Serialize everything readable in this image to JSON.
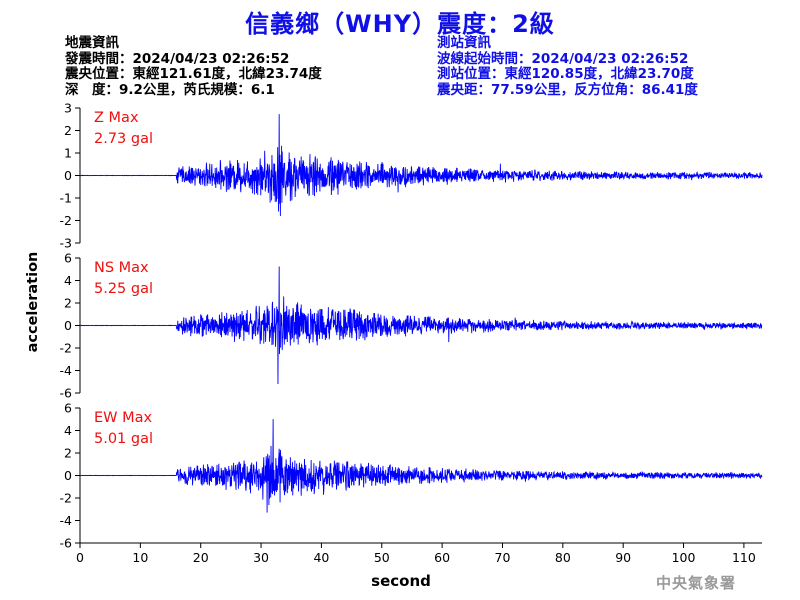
{
  "title": "信義鄉（WHY）震度：2級",
  "quake_info": {
    "heading": "地震資訊",
    "time": "發震時間：2024/04/23 02:26:52",
    "epicenter": "震央位置：東經121.61度，北緯23.74度",
    "depth_magnitude": "深　度：9.2公里，芮氏規模：6.1"
  },
  "station_info": {
    "heading": "測站資訊",
    "wave_start": "波線起始時間：2024/04/23 02:26:52",
    "location": "測站位置：東經120.85度，北緯23.70度",
    "distance": "震央距：77.59公里，反方位角：86.41度"
  },
  "credit": "中央氣象署",
  "colors": {
    "trace": "#0000ff",
    "title": "#1010e6",
    "max_label": "#ee1111",
    "axis": "#000000"
  },
  "chart_data": [
    {
      "type": "line",
      "component": "Z",
      "max_label": "Z Max",
      "max_value": "2.73 gal",
      "peak": 2.73,
      "ylim": [
        -3,
        3
      ],
      "yticks": [
        3,
        2,
        1,
        0,
        -1,
        -2,
        -3
      ],
      "xlim": [
        0,
        113
      ],
      "onset_s": 16,
      "peak_time_s": 33,
      "trough": -1.8,
      "trough_time_s": 33.2
    },
    {
      "type": "line",
      "component": "NS",
      "max_label": "NS Max",
      "max_value": "5.25 gal",
      "peak": 5.25,
      "ylim": [
        -6,
        6
      ],
      "yticks": [
        6,
        4,
        2,
        0,
        -2,
        -4,
        -6
      ],
      "xlim": [
        0,
        113
      ],
      "onset_s": 16,
      "peak_time_s": 33,
      "trough": -5.2,
      "trough_time_s": 32.8
    },
    {
      "type": "line",
      "component": "EW",
      "max_label": "EW Max",
      "max_value": "5.01 gal",
      "peak": 5.01,
      "ylim": [
        -6,
        6
      ],
      "yticks": [
        6,
        4,
        2,
        0,
        -2,
        -4,
        -6
      ],
      "xlim": [
        0,
        113
      ],
      "onset_s": 16,
      "peak_time_s": 32,
      "trough": -3.3,
      "trough_time_s": 31
    }
  ],
  "x_axis": {
    "label": "second",
    "ticks": [
      0,
      10,
      20,
      30,
      40,
      50,
      60,
      70,
      80,
      90,
      100,
      110
    ]
  },
  "y_axis": {
    "label": "acceleration"
  }
}
